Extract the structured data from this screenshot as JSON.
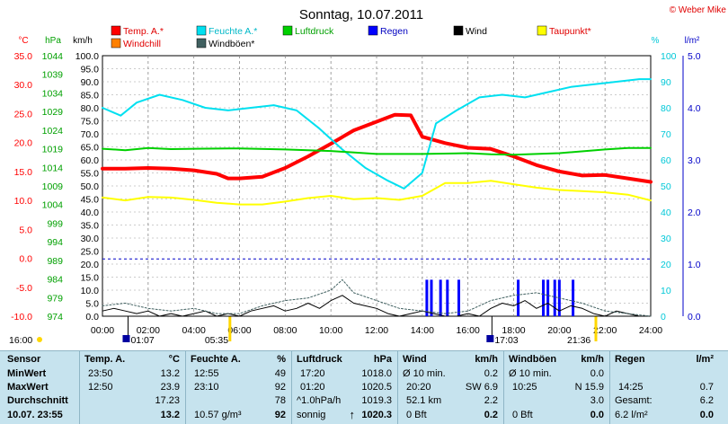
{
  "brand": "© Weber Mike",
  "chart_data": {
    "type": "line",
    "title": "Sonntag, 10.07.2011",
    "x_unit": "hours",
    "xlim": [
      0,
      24
    ],
    "x_ticks": [
      "00:00",
      "02:00",
      "04:00",
      "06:00",
      "08:00",
      "10:00",
      "12:00",
      "14:00",
      "16:00",
      "18:00",
      "20:00",
      "22:00",
      "24:00"
    ],
    "axes": [
      {
        "id": "temp",
        "unit": "°C",
        "color": "#ff0000",
        "range": [
          -10,
          35
        ],
        "ticks": [
          "35.0",
          "30.0",
          "25.0",
          "20.0",
          "15.0",
          "10.0",
          "5.0",
          "0.0",
          "-5.0",
          "-10.0"
        ]
      },
      {
        "id": "press",
        "unit": "hPa",
        "color": "#00a000",
        "range": [
          974,
          1044
        ],
        "ticks": [
          "1044",
          "1039",
          "1034",
          "1029",
          "1024",
          "1019",
          "1014",
          "1009",
          "1004",
          "999",
          "994",
          "989",
          "984",
          "979",
          "974"
        ]
      },
      {
        "id": "wind",
        "unit": "km/h",
        "color": "#000000",
        "range": [
          0,
          100
        ],
        "ticks": [
          "100.0",
          "95.0",
          "90.0",
          "85.0",
          "80.0",
          "75.0",
          "70.0",
          "65.0",
          "60.0",
          "55.0",
          "50.0",
          "45.0",
          "40.0",
          "35.0",
          "30.0",
          "25.0",
          "20.0",
          "15.0",
          "10.0",
          "5.0",
          "0.0"
        ]
      },
      {
        "id": "hum",
        "unit": "%",
        "color": "#00c8d8",
        "range": [
          0,
          100
        ],
        "ticks": [
          "100",
          "90",
          "80",
          "70",
          "60",
          "50",
          "40",
          "30",
          "20",
          "10",
          "0"
        ]
      },
      {
        "id": "rain",
        "unit": "l/m²",
        "color": "#0000c8",
        "range": [
          0,
          5
        ],
        "ticks": [
          "5.0",
          "4.0",
          "3.0",
          "2.0",
          "1.0",
          "0.0"
        ]
      }
    ],
    "legend": [
      {
        "name": "Temp. A.*",
        "color": "#ff0000"
      },
      {
        "name": "Feuchte A.*",
        "color": "#00e0f0"
      },
      {
        "name": "Luftdruck",
        "color": "#00d000"
      },
      {
        "name": "Regen",
        "color": "#0000ff"
      },
      {
        "name": "Wind",
        "color": "#000000"
      },
      {
        "name": "Taupunkt*",
        "color": "#ffff00"
      },
      {
        "name": "Windchill",
        "color": "#ff8000"
      },
      {
        "name": "Windböen*",
        "color": "#406060"
      }
    ],
    "series": [
      {
        "name": "Temp. A.*",
        "axis": "temp",
        "color": "#ff0000",
        "width": 4,
        "x": [
          0,
          1,
          2,
          3,
          4,
          5,
          5.5,
          6,
          7,
          8,
          9,
          10,
          11,
          12,
          12.8,
          13.5,
          14,
          15,
          16,
          17,
          18,
          19,
          20,
          21,
          22,
          23,
          24
        ],
        "y": [
          15.5,
          15.5,
          15.6,
          15.5,
          15.2,
          14.6,
          13.8,
          13.8,
          14.1,
          15.6,
          17.6,
          19.8,
          22.1,
          23.6,
          24.8,
          24.7,
          21.0,
          19.9,
          19.1,
          18.9,
          17.6,
          16.1,
          15.0,
          14.3,
          14.4,
          13.8,
          13.2
        ]
      },
      {
        "name": "Feuchte A.*",
        "axis": "hum",
        "color": "#00e0f0",
        "width": 2,
        "x": [
          0,
          0.8,
          1.5,
          2.5,
          3.5,
          4.5,
          5.5,
          6.5,
          7.5,
          8.5,
          9.5,
          10.5,
          11.5,
          12.5,
          13.2,
          14,
          14.6,
          15.5,
          16.5,
          17.5,
          18.5,
          19.5,
          20.5,
          21.5,
          22.5,
          23.5,
          24
        ],
        "y": [
          80,
          77,
          82,
          85,
          83,
          80,
          79,
          80,
          81,
          79,
          72,
          64,
          57,
          52,
          49,
          55,
          74,
          79,
          84,
          85,
          84,
          86,
          88,
          89,
          90,
          91,
          91
        ]
      },
      {
        "name": "Luftdruck",
        "axis": "press",
        "color": "#00d000",
        "width": 2,
        "x": [
          0,
          1,
          2,
          3,
          4,
          6,
          8,
          10,
          12,
          14,
          16,
          17,
          18,
          20,
          22,
          23,
          24
        ],
        "y": [
          1019.0,
          1018.6,
          1019.2,
          1018.9,
          1019.0,
          1019.1,
          1018.8,
          1018.4,
          1017.6,
          1017.6,
          1017.8,
          1017.5,
          1017.4,
          1017.8,
          1018.8,
          1019.2,
          1019.2
        ]
      },
      {
        "name": "Taupunkt*",
        "axis": "temp",
        "color": "#ffff00",
        "width": 2,
        "x": [
          0,
          1,
          2,
          3,
          4,
          5,
          6,
          7,
          8,
          9,
          10,
          11,
          12,
          13,
          14,
          15,
          16,
          17,
          18,
          19,
          20,
          21,
          22,
          23,
          24
        ],
        "y": [
          10.5,
          10.0,
          10.6,
          10.5,
          10.1,
          9.6,
          9.3,
          9.3,
          9.8,
          10.4,
          10.8,
          10.2,
          10.4,
          10.1,
          10.8,
          13.0,
          13.0,
          13.4,
          12.8,
          12.2,
          11.8,
          11.6,
          11.4,
          11.0,
          10.0
        ]
      },
      {
        "name": "Wind",
        "axis": "wind",
        "color": "#000000",
        "width": 1,
        "x": [
          0,
          0.5,
          1,
          1.5,
          2,
          2.5,
          3,
          3.5,
          4,
          4.5,
          5,
          5.5,
          6,
          6.5,
          7,
          7.5,
          8,
          8.5,
          9,
          9.5,
          10,
          10.5,
          11,
          11.5,
          12,
          12.5,
          13,
          13.5,
          14,
          14.5,
          15,
          15.5,
          16,
          16.5,
          17,
          17.5,
          18,
          18.5,
          19,
          19.5,
          20,
          20.5,
          21,
          21.5,
          22,
          22.5,
          23,
          23.5,
          24
        ],
        "y": [
          2,
          3,
          2,
          1,
          2,
          0,
          1,
          0,
          1,
          2,
          0,
          1,
          0,
          2,
          3,
          4,
          2,
          3,
          5,
          3,
          6,
          8,
          5,
          4,
          3,
          1,
          0,
          1,
          2,
          1,
          0,
          0,
          1,
          0,
          3,
          5,
          4,
          6,
          3,
          5,
          2,
          4,
          3,
          1,
          0,
          2,
          1,
          0,
          0
        ]
      },
      {
        "name": "Windböen*",
        "axis": "wind",
        "color": "#406060",
        "width": 1,
        "dash": "2,2",
        "x": [
          0,
          1,
          2,
          3,
          4,
          5,
          6,
          7,
          8,
          9,
          10,
          10.5,
          11,
          12,
          13,
          14,
          15,
          16,
          17,
          18,
          19,
          20,
          21,
          22,
          23,
          24
        ],
        "y": [
          4,
          5,
          3,
          2,
          3,
          1,
          1,
          4,
          6,
          7,
          10,
          14,
          9,
          6,
          3,
          2,
          1,
          2,
          6,
          8,
          9,
          7,
          5,
          2,
          1,
          0
        ]
      }
    ],
    "rain_bars": {
      "axis": "rain",
      "color": "#0000ff",
      "x": [
        14.2,
        14.4,
        14.8,
        15.1,
        15.6,
        18.2,
        19.3,
        19.5,
        19.8,
        20.0,
        20.6
      ],
      "y": [
        0.7,
        0.7,
        0.7,
        0.7,
        0.7,
        0.7,
        0.7,
        0.7,
        0.7,
        0.7,
        0.7
      ]
    },
    "rain_ref_line": {
      "axis": "rain",
      "value": 1.1,
      "color": "#0000c8"
    },
    "sun": {
      "sunrise": "05:35",
      "sunset": "21:36",
      "rise_hour": 5.58,
      "set_hour": 21.6
    },
    "time_markers": [
      {
        "label": "01:07",
        "hour": 1.12
      },
      {
        "label": "17:03",
        "hour": 17.05
      }
    ],
    "left_time_label": "16:00"
  },
  "table": {
    "sensor": {
      "header": "Sensor",
      "min": "MinWert",
      "max": "MaxWert",
      "avg": "Durchschnitt",
      "date": "10.07. 23:55"
    },
    "temp": {
      "header": "Temp. A.",
      "unit": "°C",
      "min_t": "23:50",
      "min": "13.2",
      "max_t": "12:50",
      "max": "23.9",
      "avg": "17.23",
      "cur": "13.2"
    },
    "hum": {
      "header": "Feuchte A.",
      "unit": "%",
      "min_t": "12:55",
      "min": "49",
      "max_t": "23:10",
      "max": "92",
      "avg": "78",
      "abs": "10.57 g/m³",
      "cur": "92"
    },
    "press": {
      "header": "Luftdruck",
      "unit": "hPa",
      "min_t": "17:20",
      "min": "1018.0",
      "max_t": "01:20",
      "max": "1020.5",
      "avg_l": "^1.0hPa/h",
      "avg": "1019.3",
      "state": "sonnig",
      "cur": "1020.3"
    },
    "wind": {
      "header": "Wind",
      "unit": "km/h",
      "r1l": "Ø 10 min.",
      "r1": "0.2",
      "r2l": "20:20",
      "r2": "SW 6.9",
      "r3l": "52.1 km",
      "r3": "2.2",
      "r4l": "0 Bft",
      "r4": "0.2"
    },
    "gust": {
      "header": "Windböen",
      "unit": "km/h",
      "r1l": "Ø 10 min.",
      "r1": "0.0",
      "r2l": "10:25",
      "r2": "N 15.9",
      "r3": "3.0",
      "r4l": "0 Bft",
      "r4": "0.0"
    },
    "rain": {
      "header": "Regen",
      "unit": "l/m²",
      "r2l": "14:25",
      "r2": "0.7",
      "r3l": "Gesamt:",
      "r3": "6.2",
      "r4l": "6.2 l/m²",
      "r4": "0.0"
    }
  }
}
